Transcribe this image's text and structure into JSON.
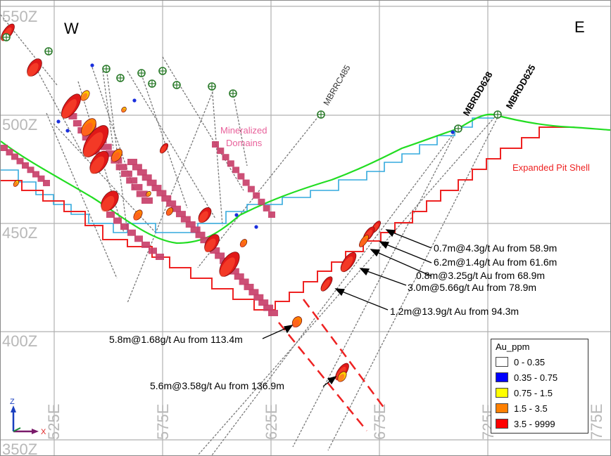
{
  "compass": {
    "west": "W",
    "east": "E"
  },
  "elevations": [
    "550Z",
    "500Z",
    "450Z",
    "400Z",
    "350Z"
  ],
  "eastings": [
    "525E",
    "575E",
    "625E",
    "675E",
    "725E"
  ],
  "drillholes": [
    "MBRRC485",
    "MBRDD628",
    "MBRDD625"
  ],
  "domains_label": [
    "Mineralized",
    "Domains"
  ],
  "pit_label": "Expanded Pit Shell",
  "intercepts": [
    "0.7m@4.3g/t Au from 58.9m",
    "6.2m@1.4g/t Au from 61.6m",
    "0.8m@3.25g/t Au from 68.9m",
    "3.0m@5.66g/t Au from 78.9m",
    "1.2m@13.9g/t Au from 94.3m",
    "5.8m@1.68g/t Au from 113.4m",
    "5.6m@3.58g/t Au from 136.9m"
  ],
  "axes": {
    "z": "Z",
    "x": "X"
  },
  "legend": {
    "title": "Au_ppm",
    "items": [
      {
        "label": "0 - 0.35",
        "color": "#ffffff"
      },
      {
        "label": "0.35 - 0.75",
        "color": "#0000ff"
      },
      {
        "label": "0.75 - 1.5",
        "color": "#ffff00"
      },
      {
        "label": "1.5 - 3.5",
        "color": "#ff8000"
      },
      {
        "label": "3.5 - 9999",
        "color": "#ff0000"
      }
    ]
  },
  "colors": {
    "topography": "#22dd22",
    "pit_shell": "#ee2222",
    "old_pit": "#33aadd",
    "domains": "#c8406a",
    "domains_text": "#e8609a",
    "grid": "#b0b0b0"
  }
}
